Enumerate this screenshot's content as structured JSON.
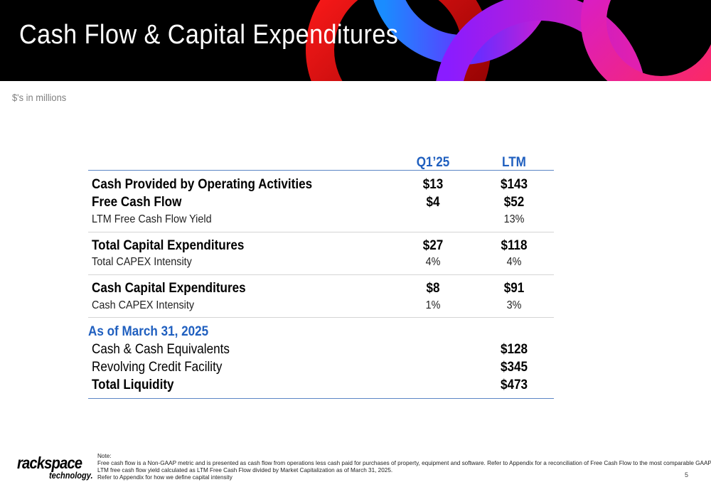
{
  "header": {
    "title": "Cash Flow & Capital Expenditures"
  },
  "subtitle": "$'s in millions",
  "table": {
    "columns": [
      "Q1’25",
      "LTM"
    ],
    "groups": [
      {
        "rows": [
          {
            "label": "Cash Provided by Operating Activities",
            "q1": "$13",
            "ltm": "$143",
            "style": "bold"
          },
          {
            "label": "Free Cash Flow",
            "q1": "$4",
            "ltm": "$52",
            "style": "bold"
          },
          {
            "label": "LTM Free Cash Flow Yield",
            "q1": "",
            "ltm": "13%",
            "style": "light"
          }
        ]
      },
      {
        "rows": [
          {
            "label": "Total Capital Expenditures",
            "q1": "$27",
            "ltm": "$118",
            "style": "bold"
          },
          {
            "label": "Total CAPEX Intensity",
            "q1": "4%",
            "ltm": "4%",
            "style": "light"
          }
        ]
      },
      {
        "rows": [
          {
            "label": "Cash Capital Expenditures",
            "q1": "$8",
            "ltm": "$91",
            "style": "bold"
          },
          {
            "label": "Cash CAPEX Intensity",
            "q1": "1%",
            "ltm": "3%",
            "style": "light"
          }
        ]
      }
    ],
    "liquidity": {
      "heading": "As of March 31, 2025",
      "rows": [
        {
          "label": "Cash & Cash Equivalents",
          "ltm": "$128"
        },
        {
          "label": "Revolving Credit Facility",
          "ltm": "$345"
        },
        {
          "label": "Total Liquidity",
          "ltm": "$473"
        }
      ]
    }
  },
  "logo": {
    "main": "rackspace",
    "sub": "technology."
  },
  "notes": [
    "Note:",
    "Free cash flow is a Non-GAAP metric and is presented as cash flow from operations less cash paid for purchases of property, equipment and software. Refer to Appendix for a reconciliation of Free Cash Flow to the most comparable GAAP measure.",
    "LTM free cash flow yield calculated as LTM Free Cash Flow divided by Market Capitalization as of March 31, 2025.",
    "Refer to Appendix for how we define capital intensity"
  ],
  "page_number": "5",
  "colors": {
    "accent_blue": "#1f5fbf",
    "rule_blue": "#5b86c5",
    "header_bg": "#000000"
  }
}
